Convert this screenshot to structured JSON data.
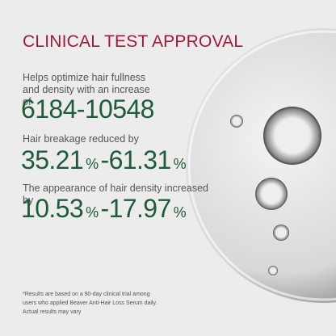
{
  "title": "CLINICAL TEST APPROVAL",
  "stats": [
    {
      "description": "Helps optimize hair fullness and density with an increase of",
      "low": "6184",
      "separator": "-",
      "high": "10548"
    },
    {
      "description": "Hair breakage reduced by",
      "low": "35.21",
      "separator": "-",
      "high": "61.31",
      "unit": "%"
    },
    {
      "description": "The appearance of hair density increased by",
      "low": "10.53",
      "separator": "-",
      "high": "17.97",
      "unit": "%"
    }
  ],
  "footnote": [
    "*Results are based on a 90-day clinical trial among",
    "users who applied Beaver Anti-Hair Loss Serum daily.",
    "Actual results may vary"
  ]
}
